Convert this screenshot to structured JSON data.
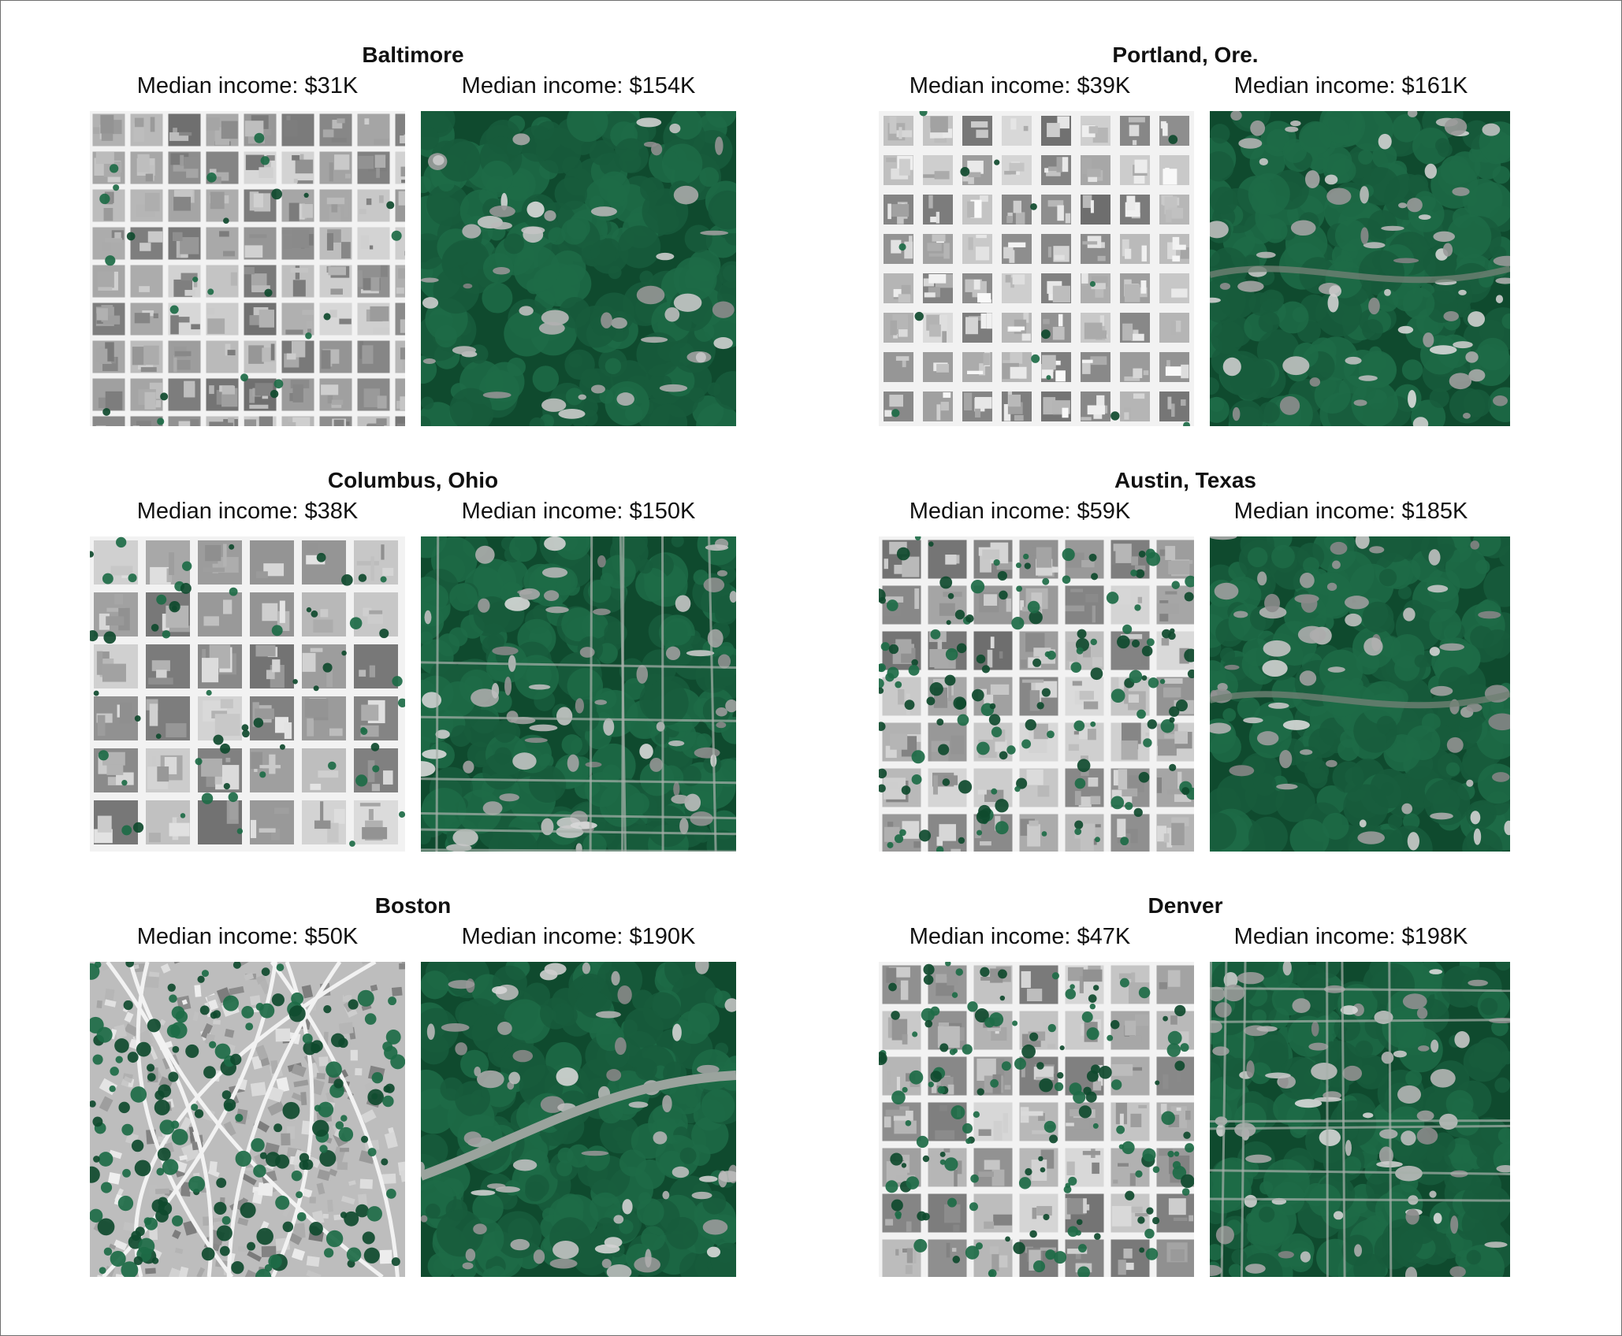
{
  "colors": {
    "tree": "#1d6b47",
    "treeDark": "#0f4a2e",
    "urban": "#d9d9d9",
    "road": "#f2f2f2",
    "roof": "#8a8a8a"
  },
  "panels": [
    {
      "city": "Baltimore",
      "low": {
        "label": "Median income: $31K",
        "pattern": "grid-dense",
        "tree_cover": 0.04
      },
      "high": {
        "label": "Median income: $154K",
        "pattern": "forest",
        "tree_cover": 0.85
      }
    },
    {
      "city": "Portland, Ore.",
      "low": {
        "label": "Median income: $39K",
        "pattern": "grid-blocks",
        "tree_cover": 0.03
      },
      "high": {
        "label": "Median income: $161K",
        "pattern": "forest-streams",
        "tree_cover": 0.7
      }
    },
    {
      "city": "Columbus, Ohio",
      "low": {
        "label": "Median income: $38K",
        "pattern": "downtown",
        "tree_cover": 0.1
      },
      "high": {
        "label": "Median income: $150K",
        "pattern": "suburb",
        "tree_cover": 0.65
      }
    },
    {
      "city": "Austin, Texas",
      "low": {
        "label": "Median income: $59K",
        "pattern": "mixed",
        "tree_cover": 0.2
      },
      "high": {
        "label": "Median income: $185K",
        "pattern": "forest-streams",
        "tree_cover": 0.72
      }
    },
    {
      "city": "Boston",
      "low": {
        "label": "Median income: $50K",
        "pattern": "organic",
        "tree_cover": 0.25
      },
      "high": {
        "label": "Median income: $190K",
        "pattern": "river-suburb",
        "tree_cover": 0.7
      }
    },
    {
      "city": "Denver",
      "low": {
        "label": "Median income: $47K",
        "pattern": "mixed",
        "tree_cover": 0.15
      },
      "high": {
        "label": "Median income: $198K",
        "pattern": "suburb",
        "tree_cover": 0.62
      }
    }
  ]
}
